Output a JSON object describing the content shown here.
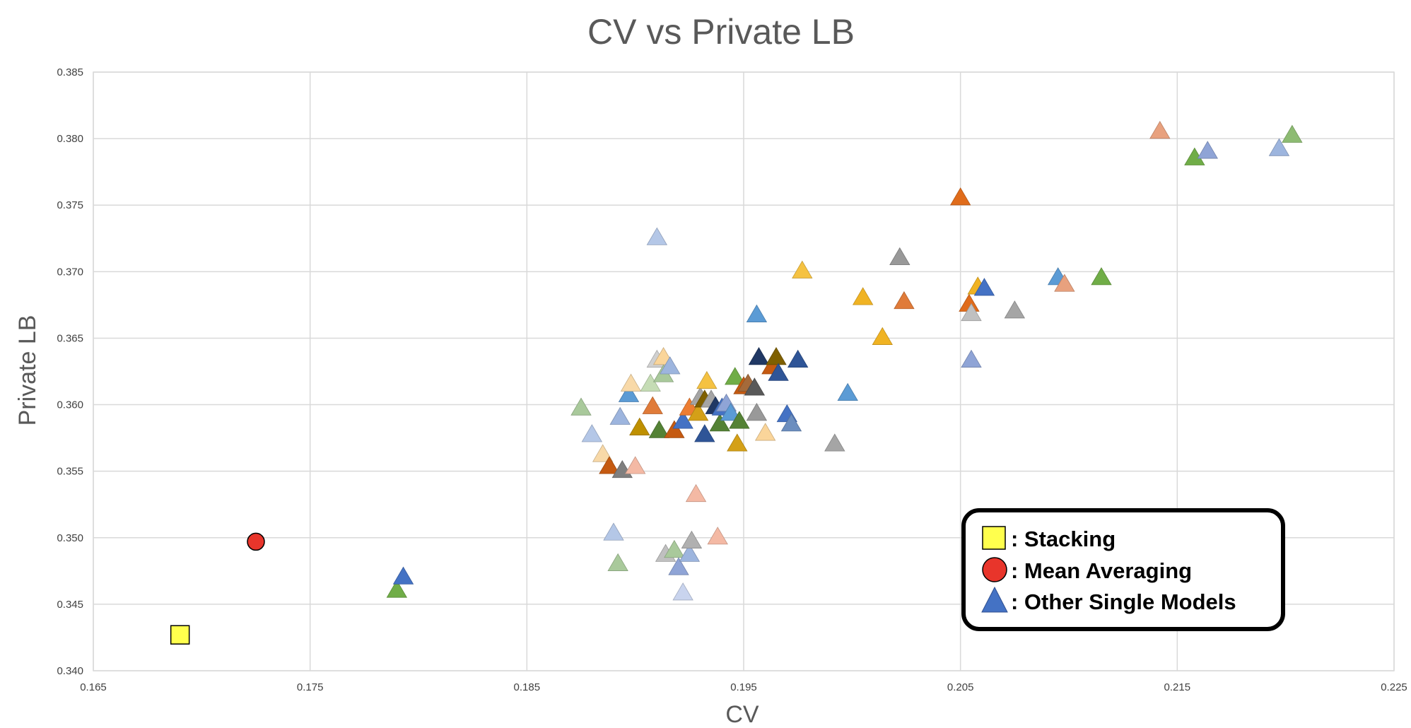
{
  "chart_data": {
    "type": "scatter",
    "title": "CV vs Private LB",
    "xlabel": "CV",
    "ylabel": "Private LB",
    "xlim": [
      0.165,
      0.225
    ],
    "ylim": [
      0.34,
      0.385
    ],
    "xticks": [
      "0.165",
      "0.175",
      "0.185",
      "0.195",
      "0.205",
      "0.215",
      "0.225"
    ],
    "yticks": [
      "0.385",
      "0.380",
      "0.375",
      "0.370",
      "0.365",
      "0.360",
      "0.355",
      "0.350",
      "0.345",
      "0.340"
    ],
    "grid": true,
    "legend_position": "bottom-right",
    "legend": [
      {
        "label": ": Stacking",
        "marker": "square",
        "color": "#FFFF4D"
      },
      {
        "label": ": Mean Averaging",
        "marker": "circle",
        "color": "#E8352B"
      },
      {
        "label": ": Other Single Models",
        "marker": "triangle",
        "color": "#4472C4"
      }
    ],
    "series": [
      {
        "marker": "square",
        "points": [
          {
            "x": 0.169,
            "y": 0.3427,
            "color": "#FFFF4D"
          }
        ]
      },
      {
        "marker": "circle",
        "points": [
          {
            "x": 0.1725,
            "y": 0.3497,
            "color": "#E8352B"
          }
        ]
      },
      {
        "marker": "triangle",
        "points": [
          {
            "x": 0.179,
            "y": 0.346,
            "color": "#70AD47"
          },
          {
            "x": 0.1793,
            "y": 0.347,
            "color": "#4472C4"
          },
          {
            "x": 0.1875,
            "y": 0.3597,
            "color": "#A9C99B"
          },
          {
            "x": 0.188,
            "y": 0.3577,
            "color": "#B4C7E7"
          },
          {
            "x": 0.1885,
            "y": 0.3562,
            "color": "#F8D9A8"
          },
          {
            "x": 0.1888,
            "y": 0.3553,
            "color": "#C55A11"
          },
          {
            "x": 0.189,
            "y": 0.3503,
            "color": "#B4C7E7"
          },
          {
            "x": 0.1892,
            "y": 0.348,
            "color": "#A9C99B"
          },
          {
            "x": 0.1893,
            "y": 0.359,
            "color": "#9DB5DE"
          },
          {
            "x": 0.1894,
            "y": 0.355,
            "color": "#7F7F7F"
          },
          {
            "x": 0.1897,
            "y": 0.3607,
            "color": "#5B9BD5"
          },
          {
            "x": 0.1898,
            "y": 0.3615,
            "color": "#F8D9A8"
          },
          {
            "x": 0.19,
            "y": 0.3553,
            "color": "#F4B9A4"
          },
          {
            "x": 0.1902,
            "y": 0.3582,
            "color": "#BF9000"
          },
          {
            "x": 0.1907,
            "y": 0.3615,
            "color": "#C5DCB5"
          },
          {
            "x": 0.1908,
            "y": 0.3598,
            "color": "#E07B39"
          },
          {
            "x": 0.191,
            "y": 0.3725,
            "color": "#B4C7E7"
          },
          {
            "x": 0.191,
            "y": 0.3633,
            "color": "#D0D0D0"
          },
          {
            "x": 0.1911,
            "y": 0.358,
            "color": "#548235"
          },
          {
            "x": 0.1913,
            "y": 0.3635,
            "color": "#FAD59A"
          },
          {
            "x": 0.1913,
            "y": 0.3622,
            "color": "#A9C99B"
          },
          {
            "x": 0.1914,
            "y": 0.3487,
            "color": "#C0C0C0"
          },
          {
            "x": 0.1916,
            "y": 0.3628,
            "color": "#9DB5DE"
          },
          {
            "x": 0.1918,
            "y": 0.358,
            "color": "#C55A11"
          },
          {
            "x": 0.1918,
            "y": 0.349,
            "color": "#A9C99B"
          },
          {
            "x": 0.192,
            "y": 0.3477,
            "color": "#8FA4D6"
          },
          {
            "x": 0.1922,
            "y": 0.3587,
            "color": "#4472C4"
          },
          {
            "x": 0.1922,
            "y": 0.3458,
            "color": "#C9D4EE"
          },
          {
            "x": 0.1925,
            "y": 0.3597,
            "color": "#ED7D31"
          },
          {
            "x": 0.1925,
            "y": 0.3487,
            "color": "#9DB5DE"
          },
          {
            "x": 0.1926,
            "y": 0.3497,
            "color": "#B0B0B0"
          },
          {
            "x": 0.1928,
            "y": 0.3532,
            "color": "#F4B9A4"
          },
          {
            "x": 0.1929,
            "y": 0.3593,
            "color": "#D4A017"
          },
          {
            "x": 0.193,
            "y": 0.3605,
            "color": "#A5A5A5"
          },
          {
            "x": 0.1932,
            "y": 0.3603,
            "color": "#7F6000"
          },
          {
            "x": 0.1932,
            "y": 0.3577,
            "color": "#2F5597"
          },
          {
            "x": 0.1933,
            "y": 0.3617,
            "color": "#F5C242"
          },
          {
            "x": 0.1935,
            "y": 0.3603,
            "color": "#A5A5A5"
          },
          {
            "x": 0.1937,
            "y": 0.3598,
            "color": "#203864"
          },
          {
            "x": 0.1938,
            "y": 0.35,
            "color": "#F4B9A4"
          },
          {
            "x": 0.1939,
            "y": 0.3585,
            "color": "#548235"
          },
          {
            "x": 0.194,
            "y": 0.3597,
            "color": "#4472C4"
          },
          {
            "x": 0.1942,
            "y": 0.36,
            "color": "#8FA4D6"
          },
          {
            "x": 0.1944,
            "y": 0.3593,
            "color": "#5B9BD5"
          },
          {
            "x": 0.1946,
            "y": 0.362,
            "color": "#70AD47"
          },
          {
            "x": 0.1947,
            "y": 0.357,
            "color": "#D4A017"
          },
          {
            "x": 0.1948,
            "y": 0.3587,
            "color": "#548235"
          },
          {
            "x": 0.195,
            "y": 0.3613,
            "color": "#C55A11"
          },
          {
            "x": 0.1952,
            "y": 0.3615,
            "color": "#A56A3A"
          },
          {
            "x": 0.1955,
            "y": 0.3612,
            "color": "#595959"
          },
          {
            "x": 0.1956,
            "y": 0.3593,
            "color": "#999999"
          },
          {
            "x": 0.1957,
            "y": 0.3635,
            "color": "#203864"
          },
          {
            "x": 0.1956,
            "y": 0.3667,
            "color": "#5B9BD5"
          },
          {
            "x": 0.196,
            "y": 0.3578,
            "color": "#FAD59A"
          },
          {
            "x": 0.1963,
            "y": 0.3628,
            "color": "#C55A11"
          },
          {
            "x": 0.1965,
            "y": 0.3635,
            "color": "#7F6000"
          },
          {
            "x": 0.1966,
            "y": 0.3623,
            "color": "#2F5597"
          },
          {
            "x": 0.197,
            "y": 0.3592,
            "color": "#4472C4"
          },
          {
            "x": 0.1972,
            "y": 0.3585,
            "color": "#6C8EBF"
          },
          {
            "x": 0.1975,
            "y": 0.3633,
            "color": "#2F5597"
          },
          {
            "x": 0.1977,
            "y": 0.37,
            "color": "#F5C242"
          },
          {
            "x": 0.1992,
            "y": 0.357,
            "color": "#A5A5A5"
          },
          {
            "x": 0.1998,
            "y": 0.3608,
            "color": "#5B9BD5"
          },
          {
            "x": 0.2005,
            "y": 0.368,
            "color": "#F0B323"
          },
          {
            "x": 0.2014,
            "y": 0.365,
            "color": "#F0B323"
          },
          {
            "x": 0.2022,
            "y": 0.371,
            "color": "#999999"
          },
          {
            "x": 0.2024,
            "y": 0.3677,
            "color": "#E07B39"
          },
          {
            "x": 0.205,
            "y": 0.3755,
            "color": "#E06C1B"
          },
          {
            "x": 0.2054,
            "y": 0.3675,
            "color": "#E06C1B"
          },
          {
            "x": 0.2055,
            "y": 0.3668,
            "color": "#C0C0C0"
          },
          {
            "x": 0.2055,
            "y": 0.3633,
            "color": "#8FA4D6"
          },
          {
            "x": 0.2058,
            "y": 0.3688,
            "color": "#F0B323"
          },
          {
            "x": 0.2061,
            "y": 0.3687,
            "color": "#4472C4"
          },
          {
            "x": 0.2075,
            "y": 0.367,
            "color": "#A5A5A5"
          },
          {
            "x": 0.2095,
            "y": 0.3695,
            "color": "#5B9BD5"
          },
          {
            "x": 0.2098,
            "y": 0.369,
            "color": "#E8A17E"
          },
          {
            "x": 0.2115,
            "y": 0.3695,
            "color": "#70AD47"
          },
          {
            "x": 0.2142,
            "y": 0.3805,
            "color": "#E8A17E"
          },
          {
            "x": 0.2158,
            "y": 0.3785,
            "color": "#70AD47"
          },
          {
            "x": 0.2164,
            "y": 0.379,
            "color": "#8FA4D6"
          },
          {
            "x": 0.2197,
            "y": 0.3792,
            "color": "#9DB5DE"
          },
          {
            "x": 0.2203,
            "y": 0.3802,
            "color": "#8DBB72"
          }
        ]
      }
    ]
  }
}
